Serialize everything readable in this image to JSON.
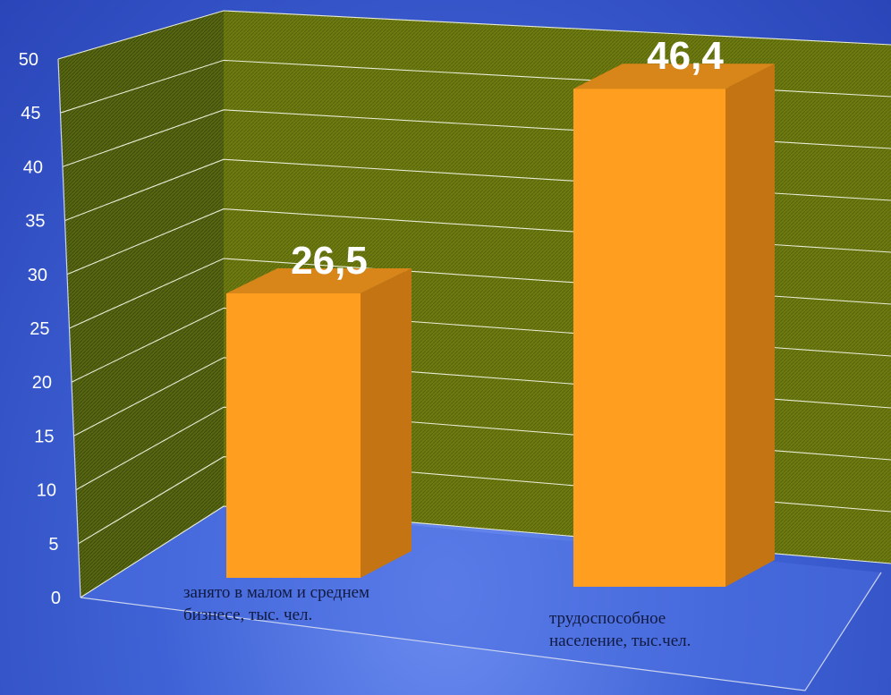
{
  "chart_data": {
    "type": "bar",
    "categories": [
      "занято в малом и среднем\nбизнесе, тыс. чел.",
      "трудоспособное\nнаселение, тыс.чел."
    ],
    "values": [
      26.5,
      46.4
    ],
    "data_labels": [
      "26,5",
      "46,4"
    ],
    "ylim": [
      0,
      50
    ],
    "yticks": [
      "0",
      "5",
      "10",
      "15",
      "20",
      "25",
      "30",
      "35",
      "40",
      "45",
      "50"
    ],
    "grid": true,
    "legend": "none",
    "colors": {
      "bar_front": "#ff9e1f",
      "bar_side": "#c47412",
      "bar_top": "#d88519",
      "wall": "#4e5c12",
      "floor": "#4a6ee0"
    }
  }
}
